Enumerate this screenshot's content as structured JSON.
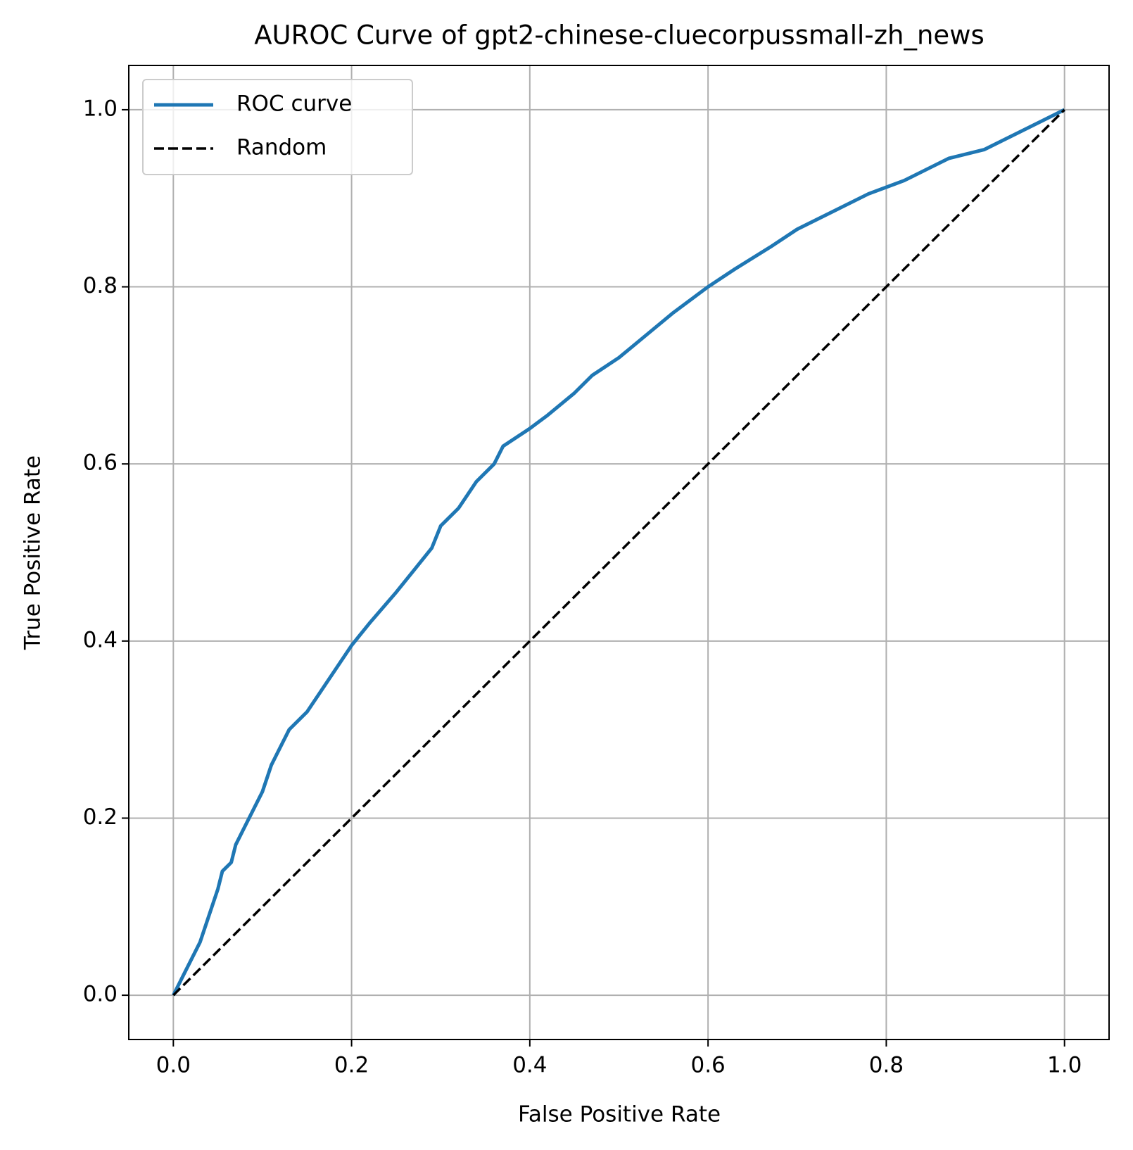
{
  "chart_data": {
    "type": "line",
    "title": "AUROC Curve of gpt2-chinese-cluecorpussmall-zh_news",
    "xlabel": "False Positive Rate",
    "ylabel": "True Positive Rate",
    "xlim": [
      -0.05,
      1.05
    ],
    "ylim": [
      -0.05,
      1.05
    ],
    "xticks": [
      {
        "value": 0,
        "label": "0.0"
      },
      0.2,
      0.4,
      0.6,
      0.8,
      {
        "value": 1,
        "label": "1.0"
      }
    ],
    "yticks": [
      {
        "value": 0,
        "label": "0.0"
      },
      0.2,
      0.4,
      0.6,
      0.8,
      {
        "value": 1,
        "label": "1.0"
      }
    ],
    "grid": true,
    "legend": "upper left",
    "series": [
      {
        "name": "ROC curve",
        "color": "#1f77b4",
        "style": "solid",
        "x": [
          0,
          0.01,
          0.02,
          0.03,
          0.04,
          0.05,
          0.055,
          0.065,
          0.07,
          0.08,
          0.09,
          0.1,
          0.11,
          0.12,
          0.13,
          0.15,
          0.17,
          0.19,
          0.2,
          0.22,
          0.25,
          0.27,
          0.29,
          0.3,
          0.32,
          0.34,
          0.36,
          0.37,
          0.4,
          0.42,
          0.45,
          0.47,
          0.5,
          0.53,
          0.56,
          0.6,
          0.63,
          0.67,
          0.7,
          0.74,
          0.78,
          0.82,
          0.85,
          0.87,
          0.91,
          0.95,
          0.98,
          1.0
        ],
        "values": [
          0,
          0.02,
          0.04,
          0.06,
          0.09,
          0.12,
          0.14,
          0.15,
          0.17,
          0.19,
          0.21,
          0.23,
          0.26,
          0.28,
          0.3,
          0.32,
          0.35,
          0.38,
          0.395,
          0.42,
          0.455,
          0.48,
          0.505,
          0.53,
          0.55,
          0.58,
          0.6,
          0.62,
          0.64,
          0.655,
          0.68,
          0.7,
          0.72,
          0.745,
          0.77,
          0.8,
          0.82,
          0.845,
          0.865,
          0.885,
          0.905,
          0.92,
          0.935,
          0.945,
          0.955,
          0.975,
          0.99,
          1.0
        ]
      },
      {
        "name": "Random",
        "color": "#000000",
        "style": "dashed",
        "x": [
          0,
          1
        ],
        "values": [
          0,
          1
        ]
      }
    ]
  }
}
